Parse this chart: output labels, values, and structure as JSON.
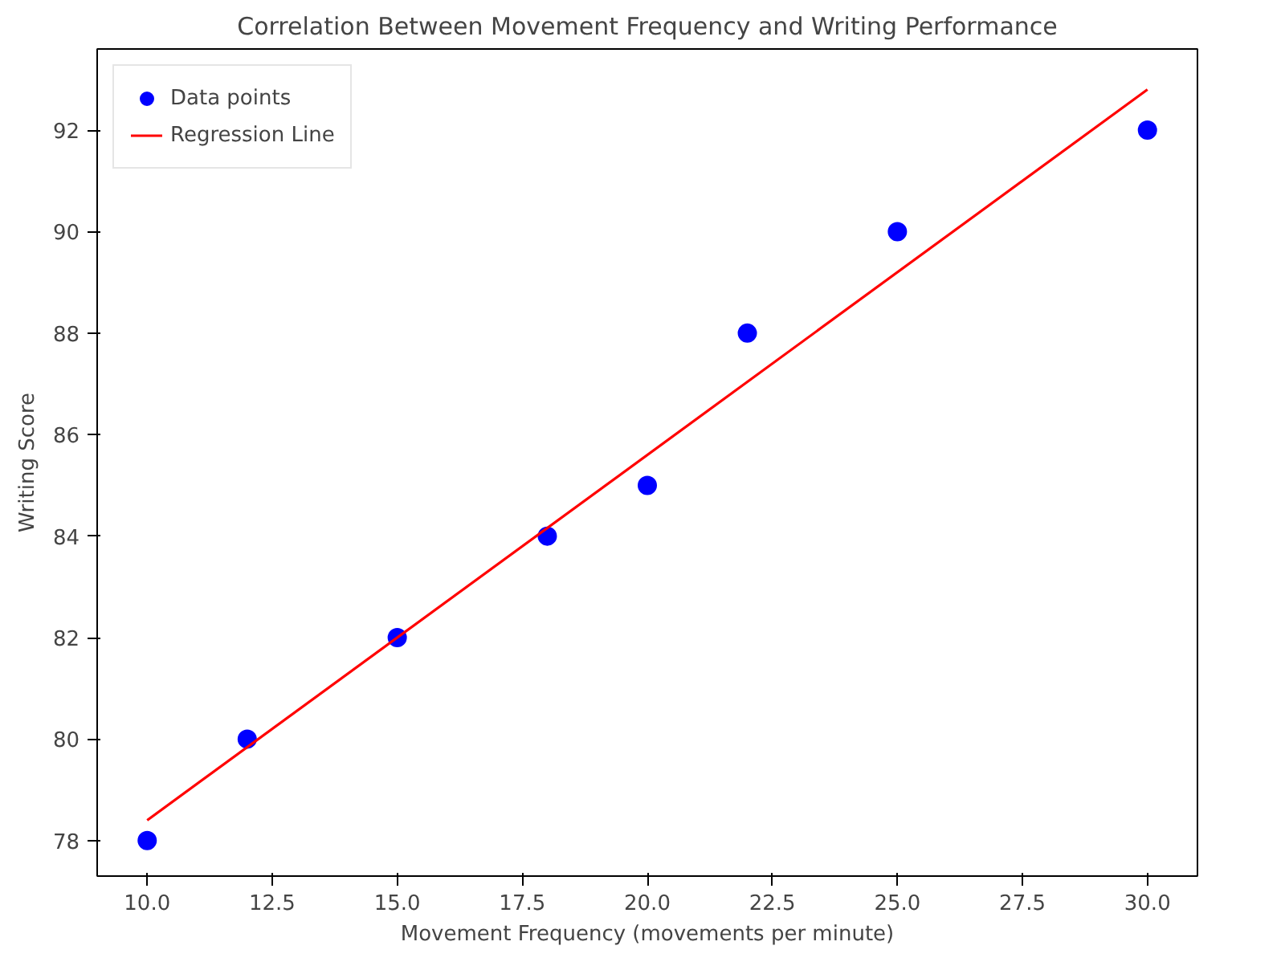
{
  "chart_data": {
    "type": "scatter",
    "title": "Correlation Between Movement Frequency and Writing Performance",
    "xlabel": "Movement Frequency (movements per minute)",
    "ylabel": "Writing Score",
    "x": [
      10,
      12,
      15,
      18,
      20,
      22,
      25,
      30
    ],
    "series": [
      {
        "name": "Data points",
        "color": "#0000ff",
        "marker": "circle",
        "values": [
          78,
          80,
          82,
          84,
          85,
          88,
          90,
          92
        ]
      },
      {
        "name": "Regression Line",
        "type": "line",
        "color": "#ff0000",
        "marker": "none",
        "x": [
          10,
          30
        ],
        "values": [
          78.4,
          92.8
        ]
      }
    ],
    "xlim": [
      9,
      31
    ],
    "ylim": [
      77.3,
      93.6
    ],
    "xticks": [
      {
        "value": 10,
        "label": "10.0"
      },
      {
        "value": 12.5,
        "label": "12.5"
      },
      {
        "value": 15,
        "label": "15.0"
      },
      {
        "value": 17.5,
        "label": "17.5"
      },
      {
        "value": 20,
        "label": "20.0"
      },
      {
        "value": 22.5,
        "label": "22.5"
      },
      {
        "value": 25,
        "label": "25.0"
      },
      {
        "value": 27.5,
        "label": "27.5"
      },
      {
        "value": 30,
        "label": "30.0"
      }
    ],
    "yticks": [
      78,
      80,
      82,
      84,
      86,
      88,
      90,
      92
    ],
    "legend": "top left",
    "grid": false
  }
}
